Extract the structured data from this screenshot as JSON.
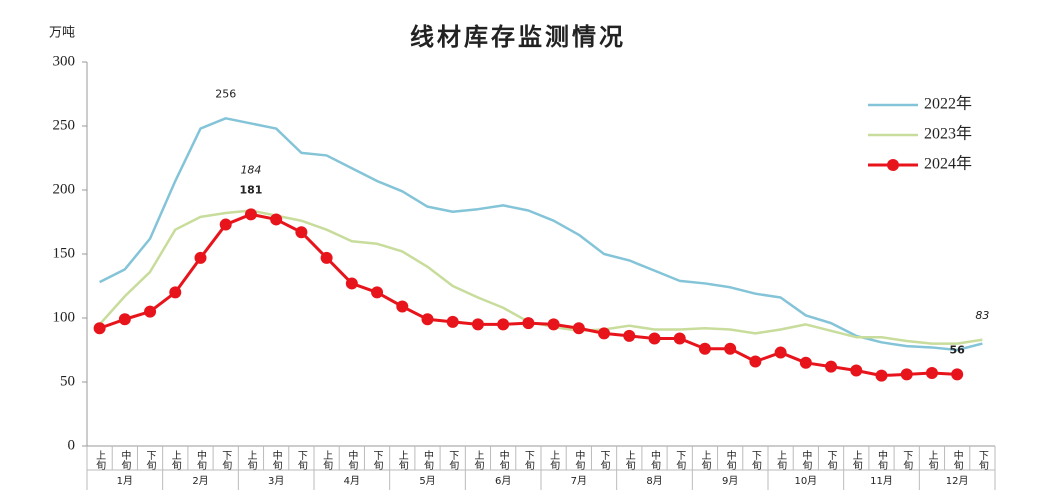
{
  "chart_data": {
    "type": "line",
    "title": "线材库存监测情况",
    "y_label": "万吨",
    "categories": [
      "上旬",
      "中旬",
      "下旬",
      "上旬",
      "中旬",
      "下旬",
      "上旬",
      "中旬",
      "下旬",
      "上旬",
      "中旬",
      "下旬",
      "上旬",
      "中旬",
      "下旬",
      "上旬",
      "中旬",
      "下旬",
      "上旬",
      "中旬",
      "下旬",
      "上旬",
      "中旬",
      "下旬",
      "上旬",
      "中旬",
      "下旬",
      "上旬",
      "中旬",
      "下旬",
      "上旬",
      "中旬",
      "下旬",
      "上旬",
      "中旬",
      "下旬"
    ],
    "groups": [
      "1月",
      "2月",
      "3月",
      "4月",
      "5月",
      "6月",
      "7月",
      "8月",
      "9月",
      "10月",
      "11月",
      "12月"
    ],
    "ylim": [
      0,
      300
    ],
    "yticks": [
      0,
      50,
      100,
      150,
      200,
      250,
      300
    ],
    "grid": false,
    "legend": "upper right",
    "series": [
      {
        "name": "2022年",
        "color": "#84c4d8",
        "marker": false,
        "values": [
          128,
          138,
          162,
          207,
          248,
          256,
          252,
          248,
          229,
          227,
          217,
          207,
          199,
          187,
          183,
          185,
          188,
          184,
          176,
          165,
          150,
          145,
          137,
          129,
          127,
          124,
          119,
          116,
          102,
          96,
          86,
          81,
          78,
          77,
          75,
          80
        ],
        "value_labels": [
          null,
          null,
          null,
          null,
          null,
          "256",
          null,
          null,
          null,
          null,
          null,
          null,
          null,
          null,
          null,
          null,
          null,
          null,
          null,
          null,
          null,
          null,
          null,
          null,
          null,
          null,
          null,
          null,
          null,
          null,
          null,
          null,
          null,
          null,
          null,
          null
        ]
      },
      {
        "name": "2023年",
        "color": "#c8dc9c",
        "marker": false,
        "values": [
          95,
          117,
          136,
          169,
          179,
          182,
          184,
          180,
          176,
          169,
          160,
          158,
          152,
          140,
          125,
          116,
          108,
          97,
          93,
          90,
          91,
          94,
          91,
          91,
          92,
          91,
          88,
          91,
          95,
          90,
          85,
          85,
          82,
          80,
          80,
          83
        ],
        "value_labels": [
          null,
          null,
          null,
          null,
          null,
          null,
          "184",
          null,
          null,
          null,
          null,
          null,
          null,
          null,
          null,
          null,
          null,
          null,
          null,
          null,
          null,
          null,
          null,
          null,
          null,
          null,
          null,
          null,
          null,
          null,
          null,
          null,
          null,
          null,
          null,
          "83"
        ]
      },
      {
        "name": "2024年",
        "color": "#e8141c",
        "marker": true,
        "values": [
          92,
          99,
          105,
          120,
          147,
          173,
          181,
          177,
          167,
          147,
          127,
          120,
          109,
          99,
          97,
          95,
          95,
          96,
          95,
          92,
          88,
          86,
          84,
          84,
          76,
          76,
          66,
          73,
          65,
          62,
          59,
          55,
          56,
          57,
          56,
          null
        ],
        "value_labels": [
          null,
          null,
          null,
          null,
          null,
          null,
          "181",
          null,
          null,
          null,
          null,
          null,
          null,
          null,
          null,
          null,
          null,
          null,
          null,
          null,
          null,
          null,
          null,
          null,
          null,
          null,
          null,
          null,
          null,
          null,
          null,
          null,
          null,
          null,
          "56",
          null
        ]
      }
    ]
  }
}
